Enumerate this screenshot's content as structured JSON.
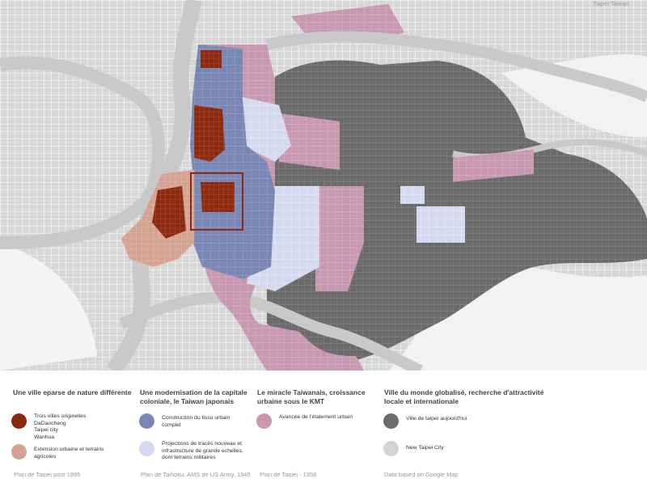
{
  "map": {
    "corner_label": "Taipei Taiwan",
    "colors": {
      "original_towns": "#8b2a12",
      "agricultural_extension": "#d4a291",
      "japanese_fabric": "#7a87b5",
      "military_projections": "#d4d9ef",
      "kmt_sprawl": "#c897b0",
      "current_city": "#6b6b6b",
      "new_taipei": "#d4d4d4",
      "river": "#c9c9c9",
      "background": "#f4f4f4"
    }
  },
  "legend": {
    "col1": {
      "title": "Une ville eparse de nature différente",
      "entries": [
        {
          "color": "#8b2a12",
          "lines": [
            "Trois villes originelles",
            "DaDaocheng",
            "Taipei city",
            "Wanhua"
          ]
        },
        {
          "color": "#d4a291",
          "lines": [
            "Extension urbaine et terrains",
            "agricoles"
          ]
        }
      ],
      "source": "Plan de Taipei post-1895"
    },
    "col2": {
      "title_lines": [
        "Une modernisation de la capitale",
        "coloniale, le Taiwan japonais"
      ],
      "entries": [
        {
          "color": "#7a87b5",
          "lines": [
            "Construction du tissu urbain",
            "complet"
          ]
        },
        {
          "color": "#d4d9ef",
          "lines": [
            "Projections de tracés nouveau et",
            "infrastructure de grande echelles,",
            "dont terrains militaires"
          ]
        }
      ],
      "source": "Plan de Taihoku, AMS de US Army, 1945"
    },
    "col3": {
      "title_lines": [
        "Le miracle Taiwanais, croissance",
        "urbaine sous le KMT"
      ],
      "entries": [
        {
          "color": "#c897b0",
          "lines": [
            "Avancée de l'étalement urbain"
          ]
        }
      ],
      "source": "Plan de Taipei - 1958"
    },
    "col4": {
      "title_lines": [
        "Ville du monde globalisé, recherche d'attractivité",
        "locale et internationale"
      ],
      "entries": [
        {
          "color": "#6b6b6b",
          "lines": [
            "Ville de taipei aujourd'hui"
          ]
        },
        {
          "color": "#d4d4d4",
          "lines": [
            "New Taipei City"
          ]
        }
      ],
      "source": "Data based on Google Map"
    }
  }
}
